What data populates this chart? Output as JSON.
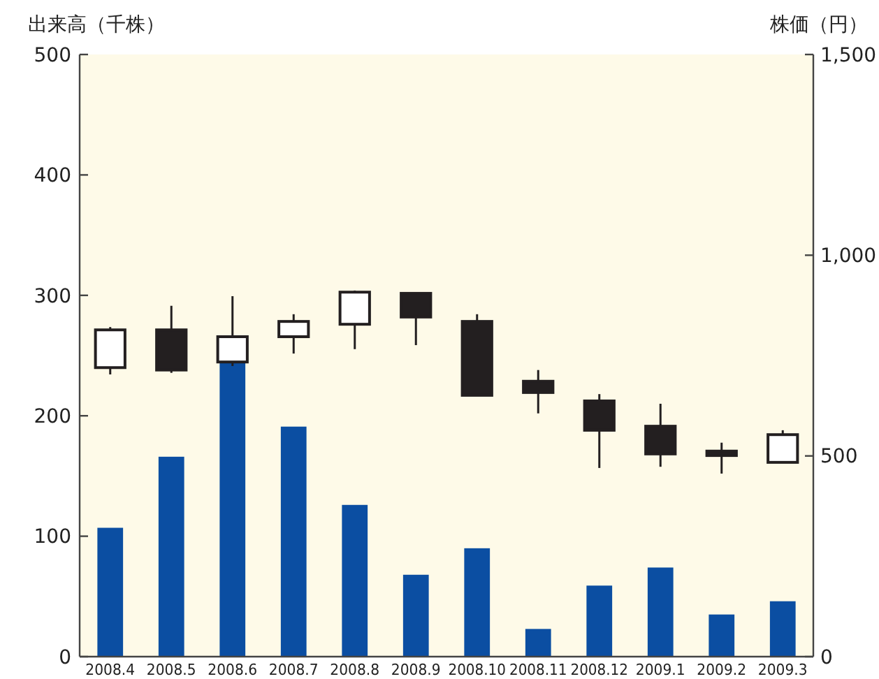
{
  "chart_data": {
    "type": "bar",
    "ylabel": "出来高（千株）",
    "y2label": "株価（円）",
    "categories": [
      "2008.4",
      "2008.5",
      "2008.6",
      "2008.7",
      "2008.8",
      "2008.9",
      "2008.10",
      "2008.11",
      "2008.12",
      "2009.1",
      "2009.2",
      "2009.3"
    ],
    "ylim": [
      0,
      500
    ],
    "yticks": [
      0,
      100,
      200,
      300,
      400,
      500
    ],
    "y2lim": [
      0,
      1500
    ],
    "y2ticks": [
      0,
      500,
      {
        "value": 1000,
        "label": "1,000"
      },
      {
        "value": 1500,
        "label": "1,500"
      }
    ],
    "grid": false,
    "series": [
      {
        "color": "#0b4ea2",
        "values": [
          107,
          166,
          245,
          191,
          126,
          68,
          90,
          23,
          59,
          74,
          35,
          46
        ]
      },
      {
        "type": "candlestick",
        "axis": "y2",
        "color": "#231f20",
        "colors": [
          "#ffffff",
          "#231f20",
          "#ffffff",
          "#ffffff",
          "#ffffff",
          "#231f20",
          "#231f20",
          "#231f20",
          "#231f20",
          "#231f20",
          "#231f20",
          "#ffffff"
        ],
        "ohlc": [
          [
            720,
            821,
            703,
            814
          ],
          [
            814,
            874,
            707,
            714
          ],
          [
            734,
            898,
            724,
            797
          ],
          [
            797,
            853,
            755,
            835
          ],
          [
            828,
            912,
            766,
            908
          ],
          [
            905,
            905,
            776,
            846
          ],
          [
            835,
            853,
            651,
            651
          ],
          [
            686,
            714,
            606,
            658
          ],
          [
            637,
            654,
            470,
            564
          ],
          [
            574,
            630,
            473,
            505
          ],
          [
            512,
            533,
            456,
            501
          ],
          [
            484,
            564,
            484,
            553
          ]
        ]
      }
    ]
  }
}
